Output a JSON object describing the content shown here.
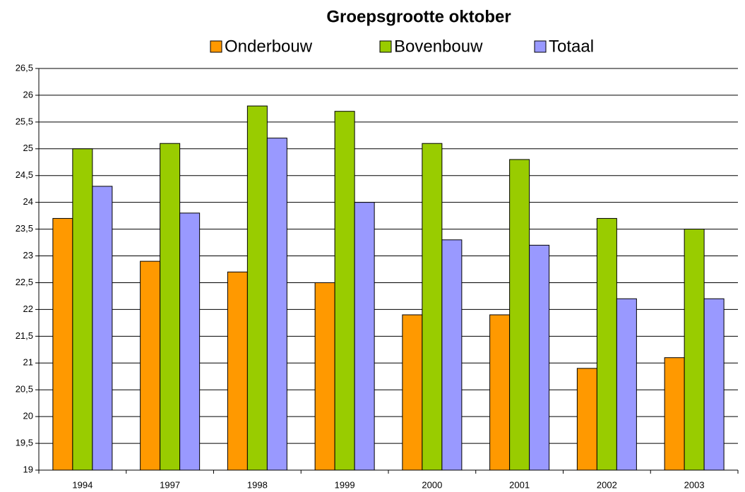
{
  "chart_data": {
    "type": "bar",
    "title": "Groepsgrootte oktober",
    "categories": [
      "1994",
      "1997",
      "1998",
      "1999",
      "2000",
      "2001",
      "2002",
      "2003"
    ],
    "series": [
      {
        "name": "Onderbouw",
        "color": "#ff9900",
        "values": [
          23.7,
          22.9,
          22.7,
          22.5,
          21.9,
          21.9,
          20.9,
          21.1
        ]
      },
      {
        "name": "Bovenbouw",
        "color": "#99cc00",
        "values": [
          25,
          25.1,
          25.8,
          25.7,
          25.1,
          24.8,
          23.7,
          23.5
        ]
      },
      {
        "name": "Totaal",
        "color": "#9999ff",
        "values": [
          24.3,
          23.8,
          25.2,
          24.0,
          23.3,
          23.2,
          22.2,
          22.2
        ]
      }
    ],
    "ylim": [
      19,
      26.5
    ],
    "yticks": [
      19,
      {
        "value": 19.5,
        "label": "19,5"
      },
      20,
      {
        "value": 20.5,
        "label": "20,5"
      },
      21,
      {
        "value": 21.5,
        "label": "21,5"
      },
      22,
      {
        "value": 22.5,
        "label": "22,5"
      },
      23,
      {
        "value": 23.5,
        "label": "23,5"
      },
      24,
      {
        "value": 24.5,
        "label": "24,5"
      },
      25,
      {
        "value": 25.5,
        "label": "25,5"
      },
      26,
      {
        "value": 26.5,
        "label": "26,5"
      }
    ],
    "grid": true,
    "legend": "top"
  }
}
